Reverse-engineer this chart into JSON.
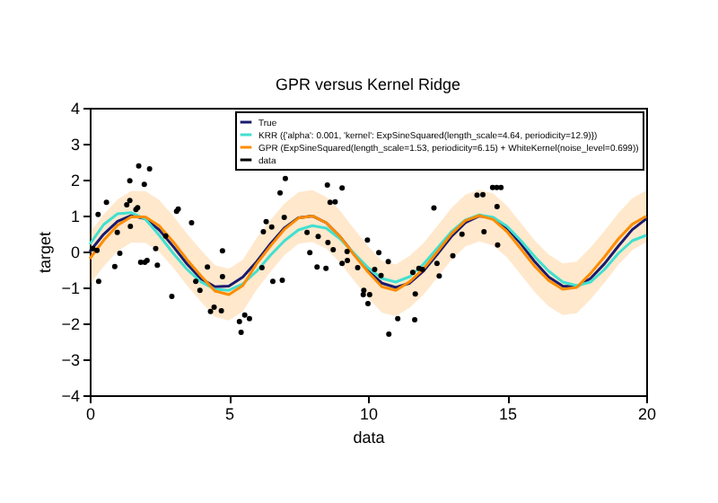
{
  "chart_data": {
    "type": "line",
    "title": "GPR versus Kernel Ridge",
    "xlabel": "data",
    "ylabel": "target",
    "x": [
      0,
      0.5,
      1,
      1.5,
      2,
      2.5,
      3,
      3.5,
      4,
      4.5,
      5,
      5.5,
      6,
      6.5,
      7,
      7.5,
      8,
      8.5,
      9,
      9.5,
      10,
      10.5,
      11,
      11.5,
      12,
      12.5,
      13,
      13.5,
      14,
      14.5,
      15,
      15.5,
      16,
      16.5,
      17,
      17.5,
      18,
      18.5,
      19,
      19.5,
      20
    ],
    "series": [
      {
        "name": "True",
        "color": "#1a1a6e",
        "values": [
          0,
          0.48,
          0.84,
          1.0,
          0.91,
          0.6,
          0.14,
          -0.35,
          -0.76,
          -0.98,
          -0.96,
          -0.71,
          -0.28,
          0.22,
          0.66,
          0.94,
          0.99,
          0.8,
          0.41,
          -0.08,
          -0.54,
          -0.88,
          -1.0,
          -0.88,
          -0.54,
          -0.07,
          0.42,
          0.8,
          0.99,
          0.94,
          0.65,
          0.21,
          -0.29,
          -0.71,
          -0.96,
          -0.98,
          -0.75,
          -0.34,
          0.15,
          0.61,
          0.91
        ]
      },
      {
        "name": "KRR ({'alpha': 0.001, 'kernel': ExpSineSquared(length_scale=4.64, periodicity=12.9)})",
        "color": "#40e0d0",
        "values": [
          0.2,
          0.75,
          1.05,
          1.08,
          0.9,
          0.45,
          -0.05,
          -0.5,
          -0.85,
          -1.05,
          -1.08,
          -0.9,
          -0.55,
          -0.1,
          0.3,
          0.6,
          0.72,
          0.65,
          0.35,
          -0.05,
          -0.45,
          -0.75,
          -0.85,
          -0.7,
          -0.35,
          0.1,
          0.55,
          0.88,
          1.02,
          0.95,
          0.7,
          0.3,
          -0.15,
          -0.55,
          -0.85,
          -0.95,
          -0.85,
          -0.5,
          -0.05,
          0.3,
          0.45
        ]
      },
      {
        "name": "GPR (ExpSineSquared(length_scale=1.53, periodicity=6.15) + WhiteKernel(noise_level=0.699))",
        "color": "#ff8c00",
        "values": [
          -0.2,
          0.31,
          0.73,
          0.97,
          0.96,
          0.71,
          0.27,
          -0.23,
          -0.68,
          -1.1,
          -1.2,
          -0.95,
          -0.34,
          0.16,
          0.62,
          0.93,
          0.99,
          0.8,
          0.41,
          -0.09,
          -0.57,
          -0.98,
          -1.08,
          -0.84,
          -0.48,
          0.0,
          0.49,
          0.86,
          1.0,
          0.89,
          0.55,
          0.07,
          -0.42,
          -0.81,
          -1.05,
          -1.0,
          -0.61,
          -0.15,
          0.35,
          0.76,
          0.98
        ],
        "lower": [
          -0.92,
          -0.41,
          0.01,
          0.25,
          0.24,
          -0.01,
          -0.45,
          -0.95,
          -1.4,
          -1.82,
          -1.92,
          -1.67,
          -1.06,
          -0.56,
          -0.1,
          0.21,
          0.27,
          0.08,
          -0.31,
          -0.81,
          -1.29,
          -1.7,
          -1.8,
          -1.56,
          -1.2,
          -0.72,
          -0.23,
          0.14,
          0.28,
          0.17,
          -0.17,
          -0.65,
          -1.14,
          -1.53,
          -1.77,
          -1.72,
          -1.33,
          -0.87,
          -0.37,
          0.04,
          0.26
        ],
        "upper": [
          0.52,
          1.03,
          1.45,
          1.69,
          1.68,
          1.43,
          0.99,
          0.49,
          0.04,
          -0.38,
          -0.48,
          -0.23,
          0.38,
          0.88,
          1.34,
          1.65,
          1.71,
          1.52,
          1.13,
          0.63,
          0.15,
          -0.26,
          -0.36,
          -0.12,
          0.24,
          0.72,
          1.21,
          1.58,
          1.72,
          1.61,
          1.27,
          0.79,
          0.3,
          -0.09,
          -0.33,
          -0.28,
          0.11,
          0.57,
          1.07,
          1.48,
          1.7
        ]
      },
      {
        "name": "data",
        "type": "scatter",
        "color": "#000000",
        "marker": "circle",
        "x": [
          0.11,
          0.3,
          0.26,
          0.32,
          0.6,
          0.9,
          0.99,
          1.08,
          1.33,
          1.44,
          1.44,
          1.46,
          1.66,
          1.72,
          1.76,
          1.83,
          1.96,
          1.98,
          2.06,
          2.15,
          2.37,
          2.43,
          2.73,
          2.95,
          3.12,
          3.18,
          3.66,
          3.81,
          3.96,
          4.23,
          4.34,
          4.47,
          4.73,
          4.77,
          4.77,
          5.38,
          5.44,
          5.57,
          5.74,
          6.19,
          6.24,
          6.34,
          6.54,
          6.58,
          6.84,
          6.92,
          6.99,
          7.03,
          7.81,
          7.91,
          8.21,
          8.17,
          8.49,
          8.54,
          8.64,
          8.82,
          8.56,
          8.75,
          9.07,
          9.07,
          9.26,
          9.25,
          9.63,
          9.85,
          9.83,
          9.98,
          10.0,
          10.06,
          10.39,
          10.24,
          10.47,
          10.73,
          10.75,
          11.07,
          11.61,
          11.68,
          11.7,
          11.83,
          11.96,
          12.37,
          12.48,
          12.56,
          13.05,
          13.38,
          13.92,
          14.13,
          14.17,
          14.48,
          14.63,
          14.78,
          14.64,
          14.66
        ],
        "values": [
          0.08,
          1.03,
          0.03,
          -0.83,
          1.37,
          -0.42,
          0.53,
          -0.05,
          1.3,
          1.42,
          1.97,
          0.7,
          1.17,
          1.22,
          2.38,
          -0.3,
          1.87,
          -0.3,
          -0.25,
          2.3,
          0.08,
          -0.38,
          0.43,
          -1.25,
          1.12,
          1.18,
          0.8,
          -0.83,
          -1.08,
          -0.43,
          -1.67,
          -1.55,
          -1.65,
          0.02,
          -0.7,
          -1.95,
          -2.25,
          -1.77,
          -1.87,
          -0.45,
          0.55,
          0.83,
          0.68,
          -0.83,
          1.63,
          -0.8,
          0.95,
          2.03,
          0.53,
          -0.03,
          0.42,
          -0.43,
          -0.47,
          1.85,
          1.37,
          1.38,
          0.25,
          0.05,
          1.77,
          -0.33,
          -0.25,
          0.0,
          -0.45,
          -1.08,
          -1.2,
          0.32,
          -1.45,
          -1.2,
          -0.03,
          -0.5,
          -0.67,
          -0.28,
          -2.3,
          -1.87,
          -0.58,
          -1.9,
          -1.18,
          -0.47,
          -0.5,
          1.21,
          -0.33,
          -0.68,
          -0.12,
          0.48,
          1.57,
          1.58,
          0.55,
          1.78,
          1.78,
          1.78,
          1.25,
          0.18
        ]
      }
    ],
    "xlim": [
      0,
      20
    ],
    "xticks": [
      0,
      5,
      10,
      15,
      20
    ],
    "ylim": [
      -4,
      4
    ],
    "yticks": [
      -4,
      -3,
      -2,
      -1,
      0,
      1,
      2,
      3,
      4
    ],
    "legend": "top right",
    "line_style": "solid"
  }
}
